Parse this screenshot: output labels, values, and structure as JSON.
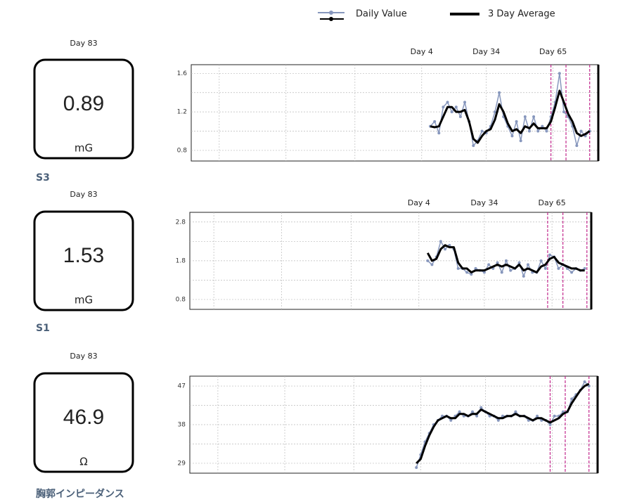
{
  "panels": [
    {
      "day": "Day 83",
      "value": "0.89",
      "unit": "mG",
      "label": "S3"
    },
    {
      "day": "Day 83",
      "value": "1.53",
      "unit": "mG",
      "label": "S1"
    },
    {
      "day": "Day 83",
      "value": "46.9",
      "unit": "Ω",
      "label": "胸郭インピーダンス"
    }
  ],
  "chart_data": [
    {
      "type": "line",
      "xlim": [
        -103,
        86
      ],
      "ylim": [
        0.69,
        1.69
      ],
      "xticks": [
        {
          "value": 4,
          "label": "Day 4"
        },
        {
          "value": 34,
          "label": "Day 34"
        },
        {
          "value": 65,
          "label": "Day 65"
        }
      ],
      "xgrid": [
        -90,
        -59,
        -27
      ],
      "yticks": [
        0.8,
        1.2,
        1.6
      ],
      "ygrid": [
        1.0,
        1.4
      ],
      "events": [
        64,
        71,
        82
      ],
      "event_color": "#c2288c",
      "x": [
        8,
        10,
        12,
        14,
        16,
        18,
        20,
        22,
        24,
        26,
        28,
        30,
        32,
        34,
        36,
        38,
        40,
        42,
        44,
        46,
        48,
        50,
        52,
        54,
        56,
        58,
        60,
        62,
        64,
        66,
        68,
        70,
        72,
        74,
        76,
        78,
        80,
        82
      ],
      "series": [
        {
          "name": "Daily Value",
          "color": "#8797bd",
          "marker": true,
          "values": [
            1.05,
            1.1,
            0.98,
            1.25,
            1.3,
            1.2,
            1.25,
            1.15,
            1.3,
            1.1,
            0.85,
            0.9,
            1.0,
            0.98,
            1.05,
            1.2,
            1.4,
            1.15,
            1.05,
            0.95,
            1.1,
            0.9,
            1.15,
            1.0,
            1.15,
            1.0,
            1.05,
            1.0,
            1.15,
            1.3,
            1.6,
            1.2,
            1.15,
            1.05,
            0.85,
            1.0,
            0.95,
            1.0
          ]
        },
        {
          "name": "3 Day Average",
          "color": "#000000",
          "marker": false,
          "values": [
            1.05,
            1.04,
            1.05,
            1.15,
            1.25,
            1.25,
            1.2,
            1.2,
            1.22,
            1.1,
            0.92,
            0.88,
            0.95,
            1.0,
            1.02,
            1.12,
            1.28,
            1.2,
            1.08,
            1.0,
            1.02,
            0.98,
            1.05,
            1.03,
            1.08,
            1.03,
            1.03,
            1.03,
            1.1,
            1.25,
            1.42,
            1.3,
            1.18,
            1.1,
            0.98,
            0.95,
            0.97,
            1.0
          ]
        }
      ]
    },
    {
      "type": "line",
      "xlim": [
        -101,
        83
      ],
      "ylim": [
        0.545,
        3.05
      ],
      "xticks": [
        {
          "value": 4,
          "label": "Day 4"
        },
        {
          "value": 34,
          "label": "Day 34"
        },
        {
          "value": 65,
          "label": "Day 65"
        }
      ],
      "xgrid": [
        -90,
        -59,
        -27
      ],
      "yticks": [
        0.8,
        1.8,
        2.8
      ],
      "ygrid": [
        1.3,
        2.3
      ],
      "events": [
        63,
        70,
        81
      ],
      "event_color": "#c2288c",
      "x": [
        8,
        10,
        12,
        14,
        16,
        18,
        20,
        22,
        24,
        26,
        28,
        30,
        32,
        34,
        36,
        38,
        40,
        42,
        44,
        46,
        48,
        50,
        52,
        54,
        56,
        58,
        60,
        62,
        64,
        66,
        68,
        70,
        72,
        74,
        76,
        78,
        80
      ],
      "series": [
        {
          "color": "#8797bd",
          "marker": true,
          "values": [
            1.8,
            1.7,
            1.9,
            2.3,
            2.1,
            2.2,
            2.1,
            1.6,
            1.6,
            1.5,
            1.45,
            1.6,
            1.55,
            1.5,
            1.7,
            1.6,
            1.75,
            1.5,
            1.8,
            1.55,
            1.6,
            1.75,
            1.4,
            1.7,
            1.5,
            1.5,
            1.8,
            1.6,
            1.95,
            1.9,
            1.6,
            1.7,
            1.6,
            1.5,
            1.6,
            1.55,
            1.6
          ]
        },
        {
          "color": "#000000",
          "marker": false,
          "values": [
            2.0,
            1.8,
            1.85,
            2.1,
            2.2,
            2.15,
            2.15,
            1.75,
            1.6,
            1.6,
            1.5,
            1.55,
            1.55,
            1.55,
            1.6,
            1.65,
            1.7,
            1.65,
            1.7,
            1.65,
            1.6,
            1.7,
            1.55,
            1.6,
            1.55,
            1.5,
            1.65,
            1.7,
            1.85,
            1.9,
            1.75,
            1.7,
            1.65,
            1.6,
            1.6,
            1.55,
            1.55
          ]
        }
      ]
    },
    {
      "type": "line",
      "xlim": [
        -103,
        86
      ],
      "ylim": [
        26.7,
        49.3
      ],
      "xgrid": [
        -90,
        -59,
        -27,
        4,
        34,
        65
      ],
      "yticks": [
        29,
        38,
        47
      ],
      "ygrid": [
        33.5,
        42.5
      ],
      "events": [
        64,
        71,
        82
      ],
      "event_color": "#c2288c",
      "x": [
        2,
        4,
        6,
        8,
        10,
        12,
        14,
        16,
        18,
        20,
        22,
        24,
        26,
        28,
        30,
        32,
        34,
        36,
        38,
        40,
        42,
        44,
        46,
        48,
        50,
        52,
        54,
        56,
        58,
        60,
        62,
        64,
        66,
        68,
        70,
        72,
        74,
        76,
        78,
        80,
        82
      ],
      "series": [
        {
          "color": "#8797bd",
          "marker": true,
          "values": [
            28,
            31,
            34,
            36,
            38,
            39,
            40,
            40,
            39,
            40,
            41,
            40,
            40,
            41,
            40,
            42,
            41,
            40,
            40,
            39,
            40,
            40,
            40,
            41,
            40,
            40,
            39,
            39,
            40,
            39,
            39,
            38,
            40,
            40,
            41,
            41,
            44,
            45,
            46,
            48,
            47
          ]
        },
        {
          "color": "#000000",
          "marker": false,
          "values": [
            29,
            30,
            33,
            35.5,
            37.5,
            39,
            39.5,
            40,
            39.5,
            39.5,
            40.5,
            40.5,
            40,
            40.5,
            40.5,
            41.5,
            41,
            40.5,
            40,
            39.5,
            39.5,
            40,
            40,
            40.5,
            40,
            40,
            39.5,
            39,
            39.5,
            39.5,
            39,
            38.5,
            39,
            39.5,
            40.5,
            41,
            43,
            44.5,
            46,
            47,
            47.5
          ]
        }
      ]
    }
  ]
}
